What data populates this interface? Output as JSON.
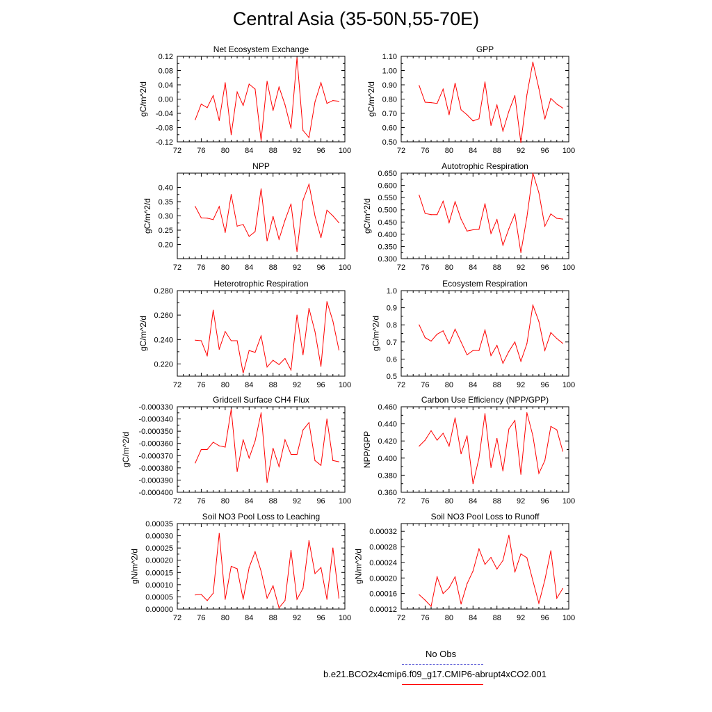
{
  "title": "Central Asia (35-50N,55-70E)",
  "colors": {
    "model_line": "#ff0000",
    "obs_line": "#5b5bd6"
  },
  "legend": {
    "obs_label": "No Obs",
    "model_label": "b.e21.BCO2x4cmip6.f09_g17.CMIP6-abrupt4xCO2.001"
  },
  "chart_data": [
    {
      "type": "line",
      "title": "Net Ecosystem Exchange",
      "ylabel": "gC/m^2/d",
      "xlim": [
        72,
        100
      ],
      "xticks": [
        "72",
        "76",
        "80",
        "84",
        "88",
        "92",
        "96",
        "100"
      ],
      "ylim": [
        -0.12,
        0.12
      ],
      "yticks": [
        "0.12",
        "0.08",
        "0.04",
        "0.00",
        "-0.04",
        "-0.08",
        "-0.12"
      ],
      "x": [
        75,
        76,
        77,
        78,
        79,
        80,
        81,
        82,
        83,
        84,
        85,
        86,
        87,
        88,
        89,
        90,
        91,
        92,
        93,
        94,
        95,
        96,
        97,
        98,
        99
      ],
      "y": [
        -0.058,
        -0.014,
        -0.024,
        0.01,
        -0.06,
        0.046,
        -0.1,
        0.02,
        -0.018,
        0.042,
        0.028,
        -0.116,
        0.05,
        -0.032,
        0.034,
        -0.016,
        -0.082,
        0.116,
        -0.088,
        -0.108,
        -0.008,
        0.046,
        -0.012,
        -0.004,
        -0.006
      ]
    },
    {
      "type": "line",
      "title": "GPP",
      "ylabel": "gC/m^2/d",
      "xlim": [
        72,
        100
      ],
      "xticks": [
        "72",
        "76",
        "80",
        "84",
        "88",
        "92",
        "96",
        "100"
      ],
      "ylim": [
        0.5,
        1.1
      ],
      "yticks": [
        "1.10",
        "1.00",
        "0.90",
        "0.80",
        "0.70",
        "0.60",
        "0.50"
      ],
      "x": [
        75,
        76,
        77,
        78,
        79,
        80,
        81,
        82,
        83,
        84,
        85,
        86,
        87,
        88,
        89,
        90,
        91,
        92,
        93,
        94,
        95,
        96,
        97,
        98,
        99
      ],
      "y": [
        0.895,
        0.778,
        0.775,
        0.77,
        0.87,
        0.69,
        0.912,
        0.725,
        0.69,
        0.647,
        0.662,
        0.92,
        0.615,
        0.758,
        0.575,
        0.715,
        0.825,
        0.495,
        0.83,
        1.06,
        0.875,
        0.66,
        0.805,
        0.765,
        0.737
      ]
    },
    {
      "type": "line",
      "title": "NPP",
      "ylabel": "gC/m^2/d",
      "xlim": [
        72,
        100
      ],
      "xticks": [
        "72",
        "76",
        "80",
        "84",
        "88",
        "92",
        "96",
        "100"
      ],
      "ylim": [
        0.15,
        0.45
      ],
      "yticks": [
        "0.40",
        "0.35",
        "0.30",
        "0.25",
        "0.20"
      ],
      "x": [
        75,
        76,
        77,
        78,
        79,
        80,
        81,
        82,
        83,
        84,
        85,
        86,
        87,
        88,
        89,
        90,
        91,
        92,
        93,
        94,
        95,
        96,
        97,
        98,
        99
      ],
      "y": [
        0.333,
        0.293,
        0.292,
        0.287,
        0.333,
        0.242,
        0.375,
        0.264,
        0.27,
        0.228,
        0.245,
        0.395,
        0.212,
        0.298,
        0.218,
        0.285,
        0.342,
        0.175,
        0.355,
        0.411,
        0.3,
        0.224,
        0.32,
        0.3,
        0.276
      ]
    },
    {
      "type": "line",
      "title": "Autotrophic Respiration",
      "ylabel": "gC/m^2/d",
      "xlim": [
        72,
        100
      ],
      "xticks": [
        "72",
        "76",
        "80",
        "84",
        "88",
        "92",
        "96",
        "100"
      ],
      "ylim": [
        0.3,
        0.65
      ],
      "yticks": [
        "0.650",
        "0.600",
        "0.550",
        "0.500",
        "0.450",
        "0.400",
        "0.350",
        "0.300"
      ],
      "x": [
        75,
        76,
        77,
        78,
        79,
        80,
        81,
        82,
        83,
        84,
        85,
        86,
        87,
        88,
        89,
        90,
        91,
        92,
        93,
        94,
        95,
        96,
        97,
        98,
        99
      ],
      "y": [
        0.56,
        0.485,
        0.48,
        0.48,
        0.535,
        0.447,
        0.533,
        0.462,
        0.413,
        0.418,
        0.42,
        0.525,
        0.403,
        0.46,
        0.355,
        0.423,
        0.483,
        0.325,
        0.47,
        0.65,
        0.57,
        0.433,
        0.483,
        0.465,
        0.462
      ]
    },
    {
      "type": "line",
      "title": "Heterotrophic Respiration",
      "ylabel": "gC/m^2/d",
      "xlim": [
        72,
        100
      ],
      "xticks": [
        "72",
        "76",
        "80",
        "84",
        "88",
        "92",
        "96",
        "100"
      ],
      "ylim": [
        0.21,
        0.28
      ],
      "yticks": [
        "0.280",
        "0.260",
        "0.240",
        "0.220"
      ],
      "x": [
        75,
        76,
        77,
        78,
        79,
        80,
        81,
        82,
        83,
        84,
        85,
        86,
        87,
        88,
        89,
        90,
        91,
        92,
        93,
        94,
        95,
        96,
        97,
        98,
        99
      ],
      "y": [
        0.2395,
        0.239,
        0.2265,
        0.264,
        0.232,
        0.2465,
        0.239,
        0.239,
        0.2125,
        0.231,
        0.2295,
        0.243,
        0.2175,
        0.223,
        0.2195,
        0.2245,
        0.215,
        0.26,
        0.2275,
        0.2655,
        0.2465,
        0.218,
        0.271,
        0.255,
        0.2315
      ]
    },
    {
      "type": "line",
      "title": "Ecosystem Respiration",
      "ylabel": "gC/m^2/d",
      "xlim": [
        72,
        100
      ],
      "xticks": [
        "72",
        "76",
        "80",
        "84",
        "88",
        "92",
        "96",
        "100"
      ],
      "ylim": [
        0.5,
        1.0
      ],
      "yticks": [
        "1.0",
        "0.9",
        "0.8",
        "0.7",
        "0.6",
        "0.5"
      ],
      "x": [
        75,
        76,
        77,
        78,
        79,
        80,
        81,
        82,
        83,
        84,
        85,
        86,
        87,
        88,
        89,
        90,
        91,
        92,
        93,
        94,
        95,
        96,
        97,
        98,
        99
      ],
      "y": [
        0.8,
        0.725,
        0.705,
        0.745,
        0.765,
        0.69,
        0.775,
        0.7,
        0.625,
        0.65,
        0.65,
        0.77,
        0.62,
        0.68,
        0.575,
        0.645,
        0.7,
        0.587,
        0.69,
        0.915,
        0.82,
        0.65,
        0.755,
        0.72,
        0.692
      ]
    },
    {
      "type": "line",
      "title": "Gridcell Surface CH4 Flux",
      "ylabel": "gC/m^2/d",
      "xlim": [
        72,
        100
      ],
      "xticks": [
        "72",
        "76",
        "80",
        "84",
        "88",
        "92",
        "96",
        "100"
      ],
      "ylim": [
        -0.0004,
        -0.00033
      ],
      "yticks": [
        "-0.000330",
        "-0.000340",
        "-0.000350",
        "-0.000360",
        "-0.000370",
        "-0.000380",
        "-0.000390",
        "-0.000400"
      ],
      "x": [
        75,
        76,
        77,
        78,
        79,
        80,
        81,
        82,
        83,
        84,
        85,
        86,
        87,
        88,
        89,
        90,
        91,
        92,
        93,
        94,
        95,
        96,
        97,
        98,
        99
      ],
      "y": [
        -0.000376,
        -0.000365,
        -0.000365,
        -0.000359,
        -0.000362,
        -0.000363,
        -0.000332,
        -0.000383,
        -0.000357,
        -0.000372,
        -0.000358,
        -0.000335,
        -0.000392,
        -0.000364,
        -0.000379,
        -0.000357,
        -0.000369,
        -0.000369,
        -0.000349,
        -0.000343,
        -0.000374,
        -0.000378,
        -0.00034,
        -0.000374,
        -0.000375
      ]
    },
    {
      "type": "line",
      "title": "Carbon Use Efficiency (NPP/GPP)",
      "ylabel": "NPP/GPP",
      "xlim": [
        72,
        100
      ],
      "xticks": [
        "72",
        "76",
        "80",
        "84",
        "88",
        "92",
        "96",
        "100"
      ],
      "ylim": [
        0.36,
        0.46
      ],
      "yticks": [
        "0.460",
        "0.440",
        "0.420",
        "0.400",
        "0.380",
        "0.360"
      ],
      "x": [
        75,
        76,
        77,
        78,
        79,
        80,
        81,
        82,
        83,
        84,
        85,
        86,
        87,
        88,
        89,
        90,
        91,
        92,
        93,
        94,
        95,
        96,
        97,
        98,
        99
      ],
      "y": [
        0.414,
        0.421,
        0.432,
        0.421,
        0.429,
        0.414,
        0.447,
        0.405,
        0.426,
        0.37,
        0.4,
        0.452,
        0.389,
        0.423,
        0.385,
        0.434,
        0.444,
        0.381,
        0.453,
        0.426,
        0.382,
        0.397,
        0.437,
        0.433,
        0.408
      ]
    },
    {
      "type": "line",
      "title": "Soil NO3 Pool Loss to Leaching",
      "ylabel": "gN/m^2/d",
      "xlim": [
        72,
        100
      ],
      "xticks": [
        "72",
        "76",
        "80",
        "84",
        "88",
        "92",
        "96",
        "100"
      ],
      "ylim": [
        0,
        0.00035
      ],
      "yticks": [
        "0.00035",
        "0.00030",
        "0.00025",
        "0.00020",
        "0.00015",
        "0.00010",
        "0.00005",
        "0.00000"
      ],
      "x": [
        75,
        76,
        77,
        78,
        79,
        80,
        81,
        82,
        83,
        84,
        85,
        86,
        87,
        88,
        89,
        90,
        91,
        92,
        93,
        94,
        95,
        96,
        97,
        98,
        99
      ],
      "y": [
        5.8e-05,
        6e-05,
        3.5e-05,
        6.5e-05,
        0.00031,
        4e-05,
        0.000175,
        0.000165,
        4e-05,
        0.00017,
        0.000235,
        0.000155,
        4.5e-05,
        9.5e-05,
        5e-06,
        3.5e-05,
        0.00024,
        4e-05,
        8.5e-05,
        0.00028,
        0.000145,
        0.00017,
        4e-05,
        0.00025,
        4.5e-05
      ]
    },
    {
      "type": "line",
      "title": "Soil NO3 Pool Loss to Runoff",
      "ylabel": "gN/m^2/d",
      "xlim": [
        72,
        100
      ],
      "xticks": [
        "72",
        "76",
        "80",
        "84",
        "88",
        "92",
        "96",
        "100"
      ],
      "ylim": [
        0.00012,
        0.00034
      ],
      "yticks": [
        "0.00032",
        "0.00028",
        "0.00024",
        "0.00020",
        "0.00016",
        "0.00012"
      ],
      "x": [
        75,
        76,
        77,
        78,
        79,
        80,
        81,
        82,
        83,
        84,
        85,
        86,
        87,
        88,
        89,
        90,
        91,
        92,
        93,
        94,
        95,
        96,
        97,
        98,
        99
      ],
      "y": [
        0.000157,
        0.000143,
        0.000127,
        0.000203,
        0.00016,
        0.000175,
        0.000203,
        0.000133,
        0.000185,
        0.000218,
        0.000275,
        0.000235,
        0.000253,
        0.000223,
        0.000245,
        0.00031,
        0.000215,
        0.000262,
        0.000252,
        0.000193,
        0.000135,
        0.000195,
        0.00027,
        0.000148,
        0.000173
      ]
    }
  ]
}
